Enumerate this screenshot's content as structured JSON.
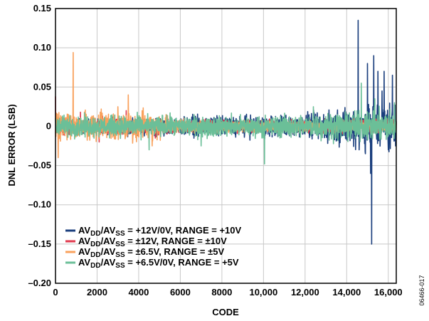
{
  "chart_data": {
    "type": "line",
    "title": "",
    "xlabel": "CODE",
    "ylabel": "DNL ERROR (LSB)",
    "xlim": [
      0,
      16384
    ],
    "ylim": [
      -0.2,
      0.15
    ],
    "grid": true,
    "x_ticks": [
      0,
      2000,
      4000,
      6000,
      8000,
      10000,
      12000,
      14000,
      16000
    ],
    "x_tick_labels": [
      "0",
      "2000",
      "4000",
      "6000",
      "8000",
      "10,000",
      "12,000",
      "14,000",
      "16,000"
    ],
    "y_ticks": [
      0.15,
      0.1,
      0.05,
      0,
      -0.05,
      -0.1,
      -0.15,
      -0.2
    ],
    "y_tick_labels": [
      "0.15",
      "0.10",
      "0.05",
      "0",
      "–0.05",
      "–0.10",
      "–0.15",
      "–0.20"
    ],
    "legend_position": "bottom-left",
    "series": [
      {
        "color": "#1a3e7d",
        "legend": {
          "a": "AV",
          "a_sub": "DD",
          "b": "/AV",
          "b_sub": "SS",
          "rest": " = +12V/0V, RANGE = +10V"
        },
        "base_amplitude": 0.006,
        "noise_growth": [
          [
            0,
            0.006
          ],
          [
            12000,
            0.01
          ],
          [
            14000,
            0.016
          ],
          [
            16384,
            0.022
          ]
        ],
        "spikes": [
          [
            14550,
            0.135
          ],
          [
            14600,
            -0.03
          ],
          [
            15200,
            -0.15
          ],
          [
            15150,
            -0.06
          ],
          [
            15300,
            0.09
          ],
          [
            15500,
            0.07
          ],
          [
            15800,
            0.07
          ],
          [
            16200,
            0.065
          ],
          [
            16000,
            -0.03
          ],
          [
            15000,
            0.08
          ],
          [
            14900,
            -0.035
          ],
          [
            15700,
            0.045
          ],
          [
            16350,
            -0.025
          ]
        ]
      },
      {
        "color": "#e03a4e",
        "legend": {
          "a": "AV",
          "a_sub": "DD",
          "b": "/AV",
          "b_sub": "SS",
          "rest": " = ±12V, RANGE = ±10V"
        },
        "base_amplitude": 0.006,
        "noise_growth": [
          [
            0,
            0.007
          ],
          [
            3000,
            0.007
          ],
          [
            8000,
            0.005
          ],
          [
            16384,
            0.006
          ]
        ],
        "spikes": [
          [
            0,
            0.038
          ],
          [
            1200,
            0.018
          ],
          [
            2100,
            -0.02
          ],
          [
            3400,
            0.02
          ],
          [
            4800,
            -0.015
          ]
        ]
      },
      {
        "color": "#f9a15c",
        "legend": {
          "a": "AV",
          "a_sub": "DD",
          "b": "/AV",
          "b_sub": "SS",
          "rest": " = ±6.5V, RANGE = ±5V"
        },
        "base_amplitude": 0.008,
        "noise_growth": [
          [
            0,
            0.012
          ],
          [
            4500,
            0.012
          ],
          [
            6000,
            0.005
          ],
          [
            16384,
            0.004
          ]
        ],
        "spikes": [
          [
            850,
            0.094
          ],
          [
            3500,
            0.04
          ],
          [
            130,
            -0.04
          ],
          [
            4650,
            -0.025
          ],
          [
            3000,
            0.025
          ],
          [
            2200,
            0.022
          ]
        ]
      },
      {
        "color": "#6bbf98",
        "legend": {
          "a": "AV",
          "a_sub": "DD",
          "b": "/AV",
          "b_sub": "SS",
          "rest": " = +6.5V/0V, RANGE = +5V"
        },
        "base_amplitude": 0.008,
        "noise_growth": [
          [
            0,
            0.009
          ],
          [
            10000,
            0.009
          ],
          [
            13000,
            0.011
          ],
          [
            16384,
            0.014
          ]
        ],
        "spikes": [
          [
            10050,
            -0.048
          ],
          [
            14700,
            0.055
          ],
          [
            15350,
            0.035
          ],
          [
            16300,
            0.03
          ],
          [
            4500,
            -0.03
          ],
          [
            12400,
            0.025
          ],
          [
            7000,
            -0.025
          ]
        ]
      }
    ]
  },
  "figure_id": "06466-017"
}
